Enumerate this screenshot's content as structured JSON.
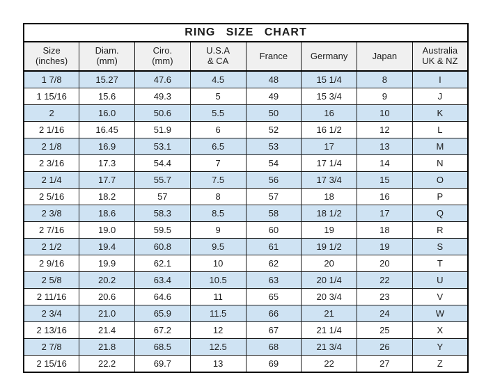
{
  "chart_data": {
    "type": "table",
    "title": "RING SIZE CHART",
    "columns": [
      {
        "id": "size-inches",
        "line1": "Size",
        "line2": "(inches)"
      },
      {
        "id": "diam-mm",
        "line1": "Diam.",
        "line2": "(mm)"
      },
      {
        "id": "ciro-mm",
        "line1": "Ciro.",
        "line2": "(mm)"
      },
      {
        "id": "usa-ca",
        "line1": "U.S.A",
        "line2": "& CA"
      },
      {
        "id": "france",
        "line1": "France",
        "line2": ""
      },
      {
        "id": "germany",
        "line1": "Germany",
        "line2": ""
      },
      {
        "id": "japan",
        "line1": "Japan",
        "line2": ""
      },
      {
        "id": "australia-uk-nz",
        "line1": "Australia",
        "line2": "UK & NZ"
      }
    ],
    "rows": [
      [
        "1 7/8",
        "15.27",
        "47.6",
        "4.5",
        "48",
        "15 1/4",
        "8",
        "I"
      ],
      [
        "1 15/16",
        "15.6",
        "49.3",
        "5",
        "49",
        "15 3/4",
        "9",
        "J"
      ],
      [
        "2",
        "16.0",
        "50.6",
        "5.5",
        "50",
        "16",
        "10",
        "K"
      ],
      [
        "2 1/16",
        "16.45",
        "51.9",
        "6",
        "52",
        "16 1/2",
        "12",
        "L"
      ],
      [
        "2 1/8",
        "16.9",
        "53.1",
        "6.5",
        "53",
        "17",
        "13",
        "M"
      ],
      [
        "2 3/16",
        "17.3",
        "54.4",
        "7",
        "54",
        "17 1/4",
        "14",
        "N"
      ],
      [
        "2 1/4",
        "17.7",
        "55.7",
        "7.5",
        "56",
        "17 3/4",
        "15",
        "O"
      ],
      [
        "2 5/16",
        "18.2",
        "57",
        "8",
        "57",
        "18",
        "16",
        "P"
      ],
      [
        "2 3/8",
        "18.6",
        "58.3",
        "8.5",
        "58",
        "18 1/2",
        "17",
        "Q"
      ],
      [
        "2 7/16",
        "19.0",
        "59.5",
        "9",
        "60",
        "19",
        "18",
        "R"
      ],
      [
        "2 1/2",
        "19.4",
        "60.8",
        "9.5",
        "61",
        "19 1/2",
        "19",
        "S"
      ],
      [
        "2 9/16",
        "19.9",
        "62.1",
        "10",
        "62",
        "20",
        "20",
        "T"
      ],
      [
        "2 5/8",
        "20.2",
        "63.4",
        "10.5",
        "63",
        "20 1/4",
        "22",
        "U"
      ],
      [
        "2 11/16",
        "20.6",
        "64.6",
        "11",
        "65",
        "20 3/4",
        "23",
        "V"
      ],
      [
        "2 3/4",
        "21.0",
        "65.9",
        "11.5",
        "66",
        "21",
        "24",
        "W"
      ],
      [
        "2 13/16",
        "21.4",
        "67.2",
        "12",
        "67",
        "21 1/4",
        "25",
        "X"
      ],
      [
        "2 7/8",
        "21.8",
        "68.5",
        "12.5",
        "68",
        "21 3/4",
        "26",
        "Y"
      ],
      [
        "2 15/16",
        "22.2",
        "69.7",
        "13",
        "69",
        "22",
        "27",
        "Z"
      ]
    ],
    "layout": {
      "striping": "odd rows highlighted, starting with first data row",
      "grid": true
    },
    "colors": {
      "row_alt_bg": "#cfe3f3",
      "header_bg": "#f0f0f0",
      "border": "#000000",
      "text": "#1c1c1c",
      "page_bg": "#ffffff"
    }
  }
}
